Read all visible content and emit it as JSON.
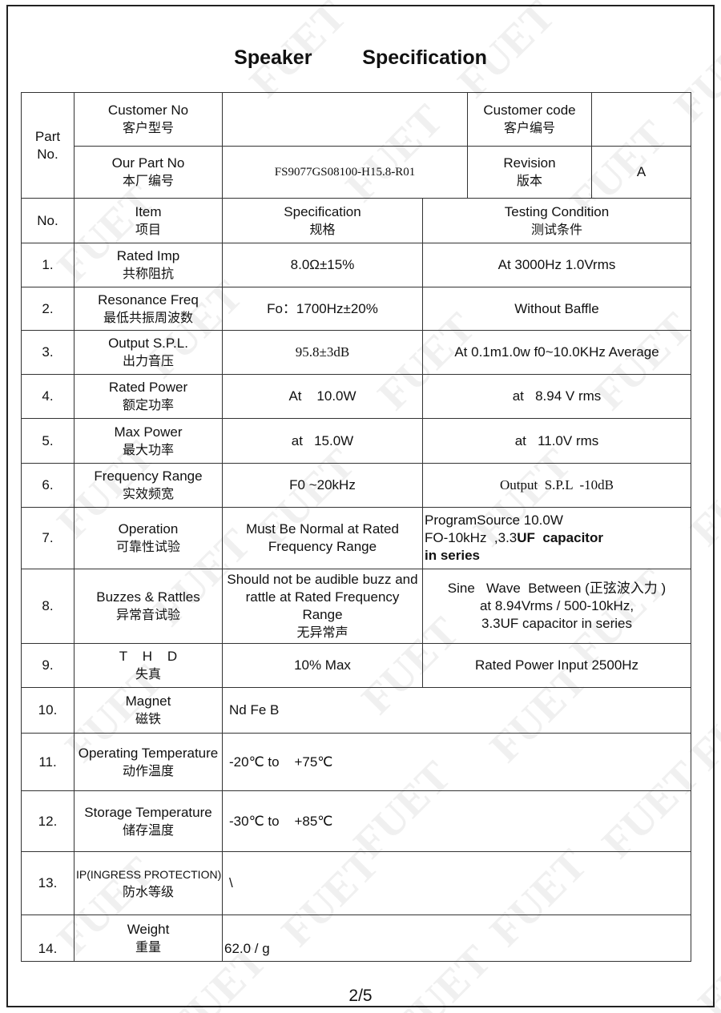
{
  "title": "Speaker   Specification",
  "watermark": "FUET",
  "header": {
    "part_no": "Part\nNo.",
    "customer_no": "Customer No",
    "customer_no_zh": "客户型号",
    "customer_no_value": "",
    "customer_code": "Customer code",
    "customer_code_zh": "客户编号",
    "customer_code_value": "",
    "our_part_no": "Our Part No",
    "our_part_no_zh": "本厂编号",
    "our_part_no_value": "FS9077GS08100-H15.8-R01",
    "revision": "Revision",
    "revision_zh": "版本",
    "revision_value": "A"
  },
  "columns": {
    "no": "No.",
    "item": "Item",
    "item_zh": "项目",
    "spec": "Specification",
    "spec_zh": "规格",
    "test": "Testing Condition",
    "test_zh": "测试条件"
  },
  "rows": [
    {
      "no": "1.",
      "item": "Rated Imp",
      "item_zh": "共称阻抗",
      "spec": "8.0Ω±15%",
      "test": "At 3000Hz 1.0Vrms"
    },
    {
      "no": "2.",
      "item": "Resonance Freq",
      "item_zh": "最低共振周波数",
      "spec": "Fo：1700Hz±20%",
      "test": "Without Baffle"
    },
    {
      "no": "3.",
      "item": "Output S.P.L.",
      "item_zh": "出力音压",
      "spec": "95.8±3dB",
      "test": "At 0.1m1.0w f0~10.0KHz Average"
    },
    {
      "no": "4.",
      "item": "Rated Power",
      "item_zh": "额定功率",
      "spec": "At    10.0W",
      "test": "at   8.94 V rms"
    },
    {
      "no": "5.",
      "item": "Max Power",
      "item_zh": "最大功率",
      "spec": "at   15.0W",
      "test": "at   11.0V rms"
    },
    {
      "no": "6.",
      "item": "Frequency Range",
      "item_zh": "实效频宽",
      "spec": "F0 ~20kHz",
      "test": "Output  S.P.L  -10dB"
    },
    {
      "no": "7.",
      "item": "Operation",
      "item_zh": "可靠性试验",
      "spec": "Must Be Normal at Rated Frequency Range",
      "test_l1": "ProgramSource  10.0W",
      "test_l2a": "FO-10kHz  ,3.3",
      "test_l2b": "UF  capacitor",
      "test_l3": "in series"
    },
    {
      "no": "8.",
      "item": "Buzzes & Rattles",
      "item_zh": "异常音试验",
      "spec": "Should not be audible buzz and rattle at Rated Frequency Range",
      "spec_zh": "无异常声",
      "test_l1": "Sine   Wave  Between (正弦波入力 )",
      "test_l2": "at  8.94Vrms / 500-10kHz,",
      "test_l3": "3.3UF capacitor in series"
    },
    {
      "no": "9.",
      "item": "T    H    D",
      "item_zh": "失真",
      "spec": "10% Max",
      "test": "Rated Power Input 2500Hz"
    },
    {
      "no": "10.",
      "item": "Magnet",
      "item_zh": "磁铁",
      "spec": "Nd Fe B"
    },
    {
      "no": "11.",
      "item": "Operating Temperature",
      "item_zh": "动作温度",
      "spec": "-20℃ to    +75℃"
    },
    {
      "no": "12.",
      "item": "Storage Temperature",
      "item_zh": "储存温度",
      "spec": "-30℃ to    +85℃"
    },
    {
      "no": "13.",
      "item": "IP(INGRESS PROTECTION)",
      "item_zh": "防水等级",
      "spec": "\\"
    },
    {
      "no": "14.",
      "item": "Weight",
      "item_zh": "重量",
      "spec": "62.0 / g"
    }
  ],
  "page_number": "2/5"
}
